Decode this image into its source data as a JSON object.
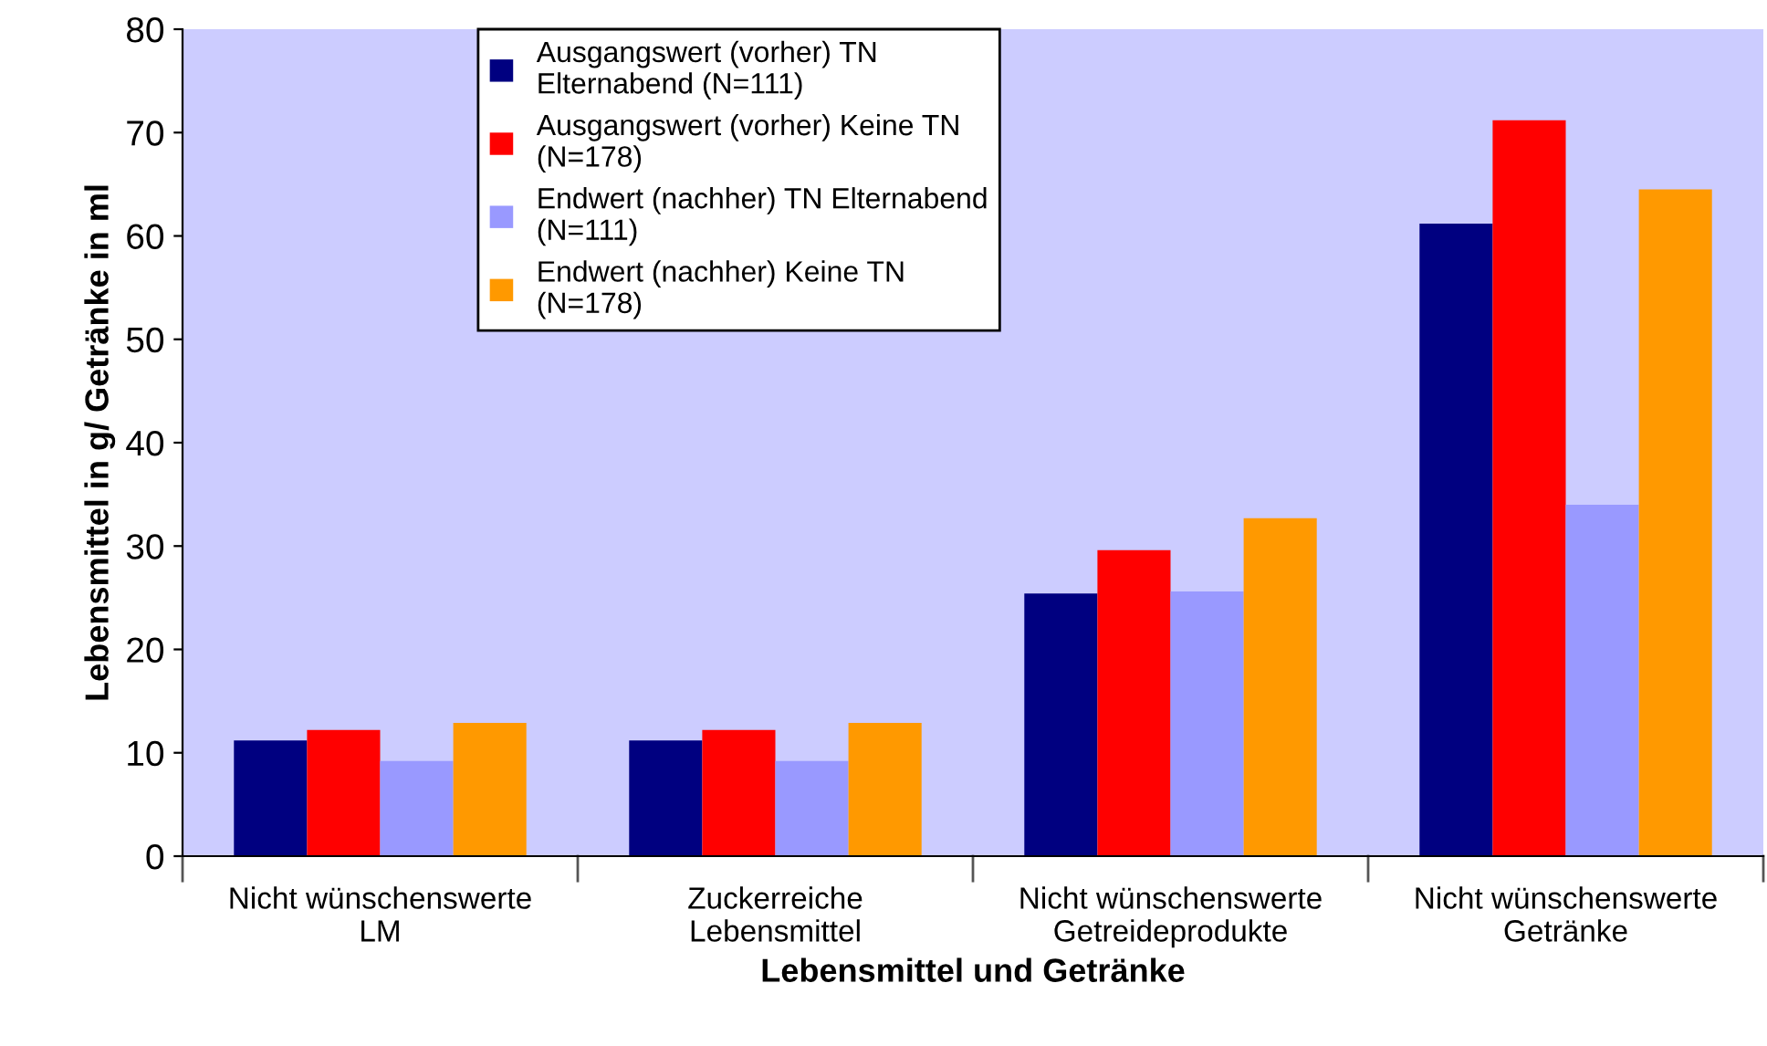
{
  "chart_data": {
    "type": "bar",
    "xlabel": "Lebensmittel und Getränke",
    "ylabel": "Lebensmittel in g/ Getränke in ml",
    "categories": [
      "Nicht wünschenswerte\nLM",
      "Zuckerreiche\nLebensmittel",
      "Nicht wünschenswerte\nGetreideprodukte",
      "Nicht wünschenswerte\nGetränke"
    ],
    "series": [
      {
        "name": "Ausgangswert (vorher) TN\nElternabend (N=111)",
        "color": "#000080",
        "values": [
          11.2,
          11.2,
          25.4,
          61.2
        ]
      },
      {
        "name": "Ausgangswert (vorher) Keine TN\n(N=178)",
        "color": "#ff0000",
        "values": [
          12.2,
          12.2,
          29.6,
          71.2
        ]
      },
      {
        "name": "Endwert (nachher) TN Elternabend\n(N=111)",
        "color": "#9999ff",
        "values": [
          9.2,
          9.2,
          25.6,
          34.0
        ]
      },
      {
        "name": "Endwert (nachher) Keine TN\n(N=178)",
        "color": "#ff9900",
        "values": [
          12.9,
          12.9,
          32.7,
          64.5
        ]
      }
    ],
    "ylim": [
      0,
      80
    ],
    "yticks": [
      0,
      10,
      20,
      30,
      40,
      50,
      60,
      70,
      80
    ],
    "grid": false,
    "legend": "top left"
  }
}
